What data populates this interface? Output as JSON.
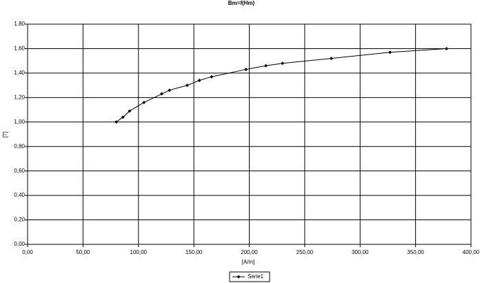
{
  "chart_data": {
    "type": "line",
    "title": "Bm=f(Hm)",
    "x_label": "[A/m]",
    "y_label": "[T]",
    "x": [
      80,
      86,
      92,
      105,
      121,
      128,
      144,
      155,
      166,
      197,
      215,
      230,
      274,
      327,
      378
    ],
    "series": [
      {
        "name": "Serie1",
        "color": "#000000",
        "values": [
          1.0,
          1.04,
          1.09,
          1.16,
          1.23,
          1.26,
          1.3,
          1.34,
          1.37,
          1.43,
          1.46,
          1.48,
          1.52,
          1.57,
          1.6
        ]
      }
    ],
    "xlim": [
      0,
      400
    ],
    "xticks": [
      {
        "value": 0,
        "label": "0,00"
      },
      {
        "value": 50,
        "label": "50,00"
      },
      {
        "value": 100,
        "label": "100,00"
      },
      {
        "value": 150,
        "label": "150,00"
      },
      {
        "value": 200,
        "label": "200,00"
      },
      {
        "value": 250,
        "label": "250,00"
      },
      {
        "value": 300,
        "label": "300,00"
      },
      {
        "value": 350,
        "label": "350,00"
      },
      {
        "value": 400,
        "label": "400,00"
      }
    ],
    "ylim": [
      0,
      1.8
    ],
    "yticks": [
      {
        "value": 0,
        "label": "0,00"
      },
      {
        "value": 0.2,
        "label": "0,20"
      },
      {
        "value": 0.4,
        "label": "0,40"
      },
      {
        "value": 0.6,
        "label": "0,60"
      },
      {
        "value": 0.8,
        "label": "0,80"
      },
      {
        "value": 1.0,
        "label": "1,00"
      },
      {
        "value": 1.2,
        "label": "1,20"
      },
      {
        "value": 1.4,
        "label": "1,40"
      },
      {
        "value": 1.6,
        "label": "1,60"
      },
      {
        "value": 1.8,
        "label": "1,80"
      }
    ],
    "grid": true,
    "legend": "bottom"
  }
}
